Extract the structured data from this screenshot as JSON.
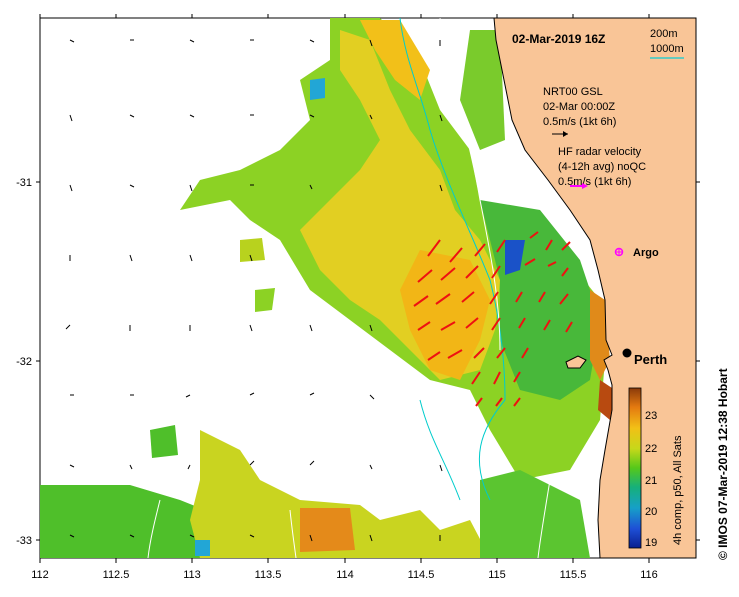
{
  "title": "02-Mar-2019 16Z",
  "depth_legend": {
    "c1": "200m",
    "c2": "1000m",
    "c2_color": "#33cccc"
  },
  "vector_legend_1": {
    "line1": "NRT00 GSL",
    "line2": "02-Mar 00:00Z",
    "line3": "0.5m/s (1kt 6h)"
  },
  "vector_legend_2": {
    "line1": "HF radar velocity",
    "line2": "(4-12h avg) noQC",
    "line3": "0.5m/s (1kt 6h)",
    "color": "#ff00ff"
  },
  "argo_label": "Argo",
  "city_label": "Perth",
  "x_ticks": [
    "112",
    "112.5",
    "113",
    "113.5",
    "114",
    "114.5",
    "115",
    "115.5",
    "116"
  ],
  "y_ticks": [
    "-31",
    "-32",
    "-33"
  ],
  "colorbar": {
    "ticks": [
      "23",
      "22",
      "21",
      "20",
      "19"
    ],
    "label": "4h comp, p50, All Sats"
  },
  "credit": "© IMOS 07-Mar-2019 12:38 Hobart",
  "colors": {
    "land": "#f9c597",
    "coast": "#000000",
    "arrows_red": "#ee1111",
    "current": "#00cccc"
  }
}
